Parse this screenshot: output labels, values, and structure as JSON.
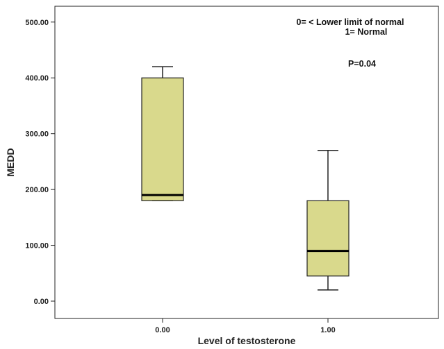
{
  "chart_data": {
    "type": "boxplot",
    "title": "",
    "xlabel": "Level of testosterone",
    "ylabel": "MEDD",
    "ylim": [
      -30,
      530
    ],
    "yticks": [
      0,
      100,
      200,
      300,
      400,
      500
    ],
    "ytick_labels": [
      "0.00",
      "100.00",
      "200.00",
      "300.00",
      "400.00",
      "500.00"
    ],
    "categories": [
      "0.00",
      "1.00"
    ],
    "boxes": [
      {
        "category": "0.00",
        "min": 180,
        "q1": 180,
        "median": 190,
        "q3": 400,
        "max": 420
      },
      {
        "category": "1.00",
        "min": 20,
        "q1": 45,
        "median": 90,
        "q3": 180,
        "max": 270
      }
    ],
    "annotations": [
      {
        "text": "0= < Lower limit of normal"
      },
      {
        "text": "1= Normal"
      },
      {
        "text": "P=0.04"
      }
    ],
    "grid": false,
    "colors": {
      "box_fill": "#D9D98C",
      "box_stroke": "#222222",
      "median": "#000000",
      "axis": "#222222"
    }
  }
}
